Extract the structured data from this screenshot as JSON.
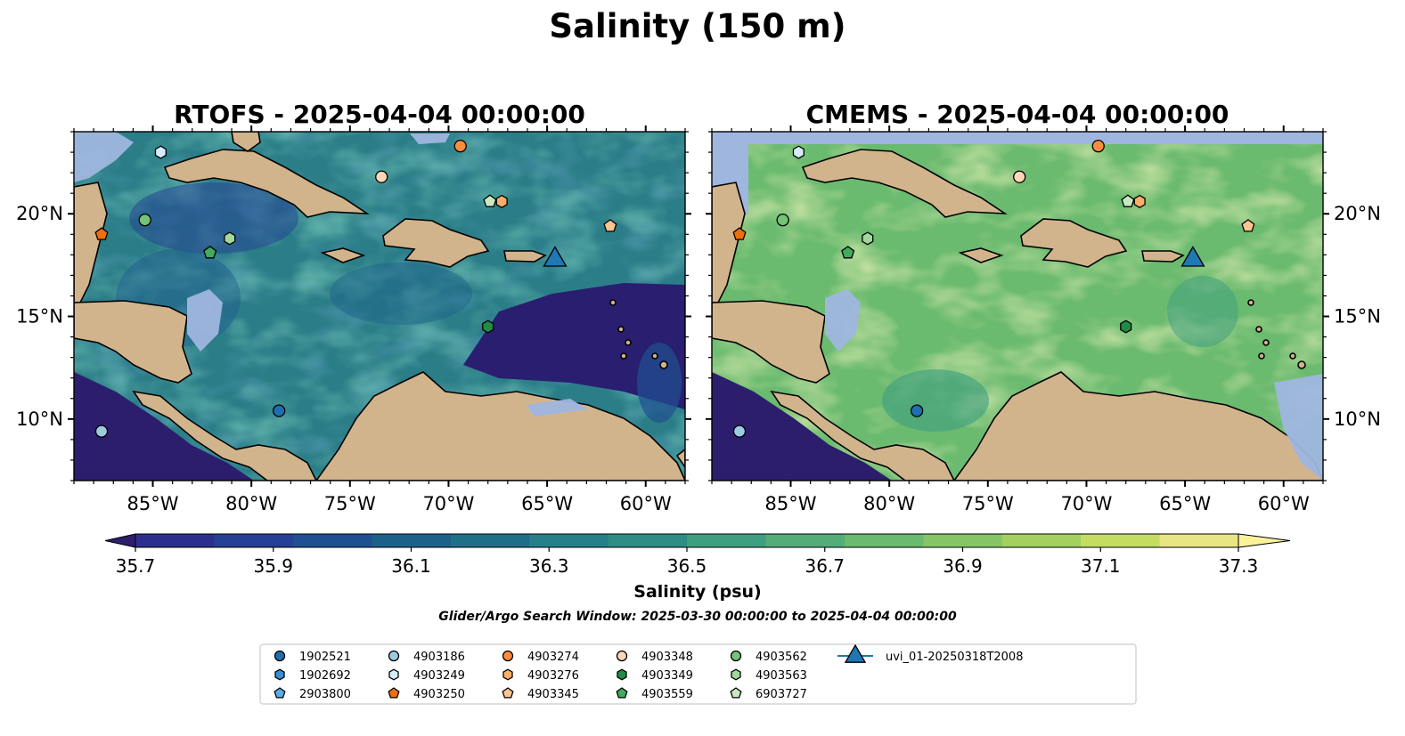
{
  "figure": {
    "suptitle": "Salinity (150 m)",
    "search_window": "Glider/Argo Search Window: 2025-03-30 00:00:00 to 2025-04-04 00:00:00"
  },
  "colors": {
    "land": "#d2b48c",
    "shallow_water": "#9fb6df",
    "coast": "#000000",
    "rivers": "#a9bcd6",
    "glider_track": "#1f77b4"
  },
  "maps": [
    {
      "title": "RTOFS - 2025-04-04 00:00:00",
      "model": "RTOFS"
    },
    {
      "title": "CMEMS - 2025-04-04 00:00:00",
      "model": "CMEMS"
    }
  ],
  "axes": {
    "lon_ticks": [
      {
        "value": -85,
        "label": "85°W"
      },
      {
        "value": -80,
        "label": "80°W"
      },
      {
        "value": -75,
        "label": "75°W"
      },
      {
        "value": -70,
        "label": "70°W"
      },
      {
        "value": -65,
        "label": "65°W"
      },
      {
        "value": -60,
        "label": "60°W"
      }
    ],
    "lat_ticks": [
      {
        "value": 20,
        "label": "20°N"
      },
      {
        "value": 15,
        "label": "15°N"
      },
      {
        "value": 10,
        "label": "10°N"
      }
    ],
    "lon_range": [
      -89,
      -58
    ],
    "lat_range": [
      7,
      24
    ]
  },
  "colorbar": {
    "label": "Salinity (psu)",
    "min": 35.6,
    "max": 37.4,
    "step": 0.1,
    "extend": "both",
    "tick_labels": [
      "35.7",
      "35.9",
      "36.1",
      "36.3",
      "36.5",
      "36.7",
      "36.9",
      "37.1",
      "37.3"
    ],
    "tick_values": [
      35.7,
      35.9,
      36.1,
      36.3,
      36.5,
      36.7,
      36.9,
      37.1,
      37.3
    ],
    "colors": [
      "#2c1e6d",
      "#2d2f8e",
      "#263f97",
      "#1f5092",
      "#1c6189",
      "#1f6f89",
      "#25808a",
      "#2e8e86",
      "#3d9e80",
      "#52ad79",
      "#6aba6f",
      "#85c565",
      "#a2d160",
      "#c4dd61",
      "#e8e584",
      "#f9f29a"
    ]
  },
  "legend": {
    "placement": "lower center",
    "entries": [
      {
        "label": "1902521",
        "marker": "circle",
        "color": "#1f6fae"
      },
      {
        "label": "1902692",
        "marker": "hexagon",
        "color": "#3a8ed0"
      },
      {
        "label": "2903800",
        "marker": "pentagon",
        "color": "#58aee6"
      },
      {
        "label": "4903186",
        "marker": "circle",
        "color": "#9ecae1"
      },
      {
        "label": "4903249",
        "marker": "hexagon",
        "color": "#d6ecf9"
      },
      {
        "label": "4903250",
        "marker": "pentagon",
        "color": "#ef6f0a"
      },
      {
        "label": "4903274",
        "marker": "circle",
        "color": "#fd8d3c"
      },
      {
        "label": "4903276",
        "marker": "hexagon",
        "color": "#fdae6b"
      },
      {
        "label": "4903345",
        "marker": "pentagon",
        "color": "#fdc591"
      },
      {
        "label": "4903348",
        "marker": "circle",
        "color": "#fdd7b8"
      },
      {
        "label": "4903349",
        "marker": "hexagon",
        "color": "#238b45"
      },
      {
        "label": "4903559",
        "marker": "pentagon",
        "color": "#41ab5d"
      },
      {
        "label": "4903562",
        "marker": "circle",
        "color": "#74c476"
      },
      {
        "label": "4903563",
        "marker": "hexagon",
        "color": "#a1d99b"
      },
      {
        "label": "6903727",
        "marker": "pentagon",
        "color": "#c7e9c0"
      },
      {
        "label": "uvi_01-20250318T2008",
        "marker": "triangle",
        "color": "#1f77b4"
      }
    ]
  },
  "floats": [
    {
      "id": "1902521",
      "lon": -78.6,
      "lat": 10.4
    },
    {
      "id": "4903186",
      "lon": -87.6,
      "lat": 9.4
    },
    {
      "id": "4903249",
      "lon": -84.6,
      "lat": 23.0
    },
    {
      "id": "4903250",
      "lon": -87.6,
      "lat": 19.0
    },
    {
      "id": "4903274",
      "lon": -69.4,
      "lat": 23.3
    },
    {
      "id": "4903276",
      "lon": -67.3,
      "lat": 20.6
    },
    {
      "id": "4903345",
      "lon": -61.8,
      "lat": 19.4
    },
    {
      "id": "4903348",
      "lon": -73.4,
      "lat": 21.8
    },
    {
      "id": "4903349",
      "lon": -68.0,
      "lat": 14.5
    },
    {
      "id": "4903559",
      "lon": -82.1,
      "lat": 18.1
    },
    {
      "id": "4903562",
      "lon": -85.4,
      "lat": 19.7
    },
    {
      "id": "4903563",
      "lon": -81.1,
      "lat": 18.8
    },
    {
      "id": "6903727",
      "lon": -67.9,
      "lat": 20.6
    },
    {
      "id": "uvi_01-20250318T2008",
      "lon": -64.6,
      "lat": 17.9
    }
  ]
}
